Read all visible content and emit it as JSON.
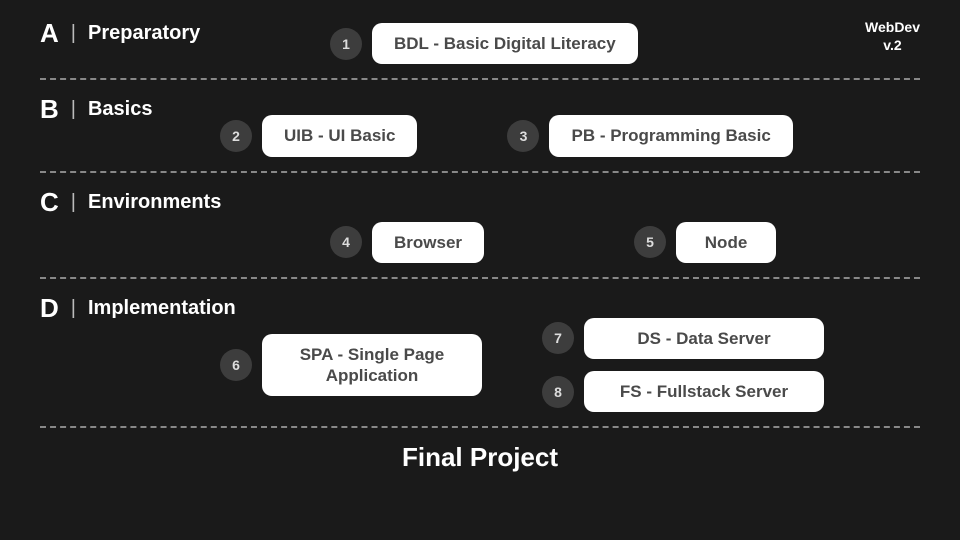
{
  "brand": {
    "name": "WebDev",
    "version": "v.2"
  },
  "colors": {
    "background": "#1a1a1a",
    "card_bg": "#ffffff",
    "card_text": "#4a4a4a",
    "badge_bg": "#3d3d3d",
    "badge_text": "#dddddd",
    "divider": "#888888",
    "text": "#ffffff"
  },
  "typography": {
    "section_letter_fontsize": 26,
    "section_title_fontsize": 20,
    "card_fontsize": 17,
    "badge_fontsize": 14,
    "final_fontsize": 26
  },
  "sections": [
    {
      "letter": "A",
      "title": "Preparatory",
      "modules": [
        {
          "num": "1",
          "label": "BDL - Basic Digital Literacy"
        }
      ]
    },
    {
      "letter": "B",
      "title": "Basics",
      "modules": [
        {
          "num": "2",
          "label": "UIB - UI Basic"
        },
        {
          "num": "3",
          "label": "PB - Programming Basic"
        }
      ]
    },
    {
      "letter": "C",
      "title": "Environments",
      "modules": [
        {
          "num": "4",
          "label": "Browser"
        },
        {
          "num": "5",
          "label": "Node"
        }
      ]
    },
    {
      "letter": "D",
      "title": "Implementation",
      "modules": [
        {
          "num": "6",
          "label": "SPA - Single Page Application"
        },
        {
          "num": "7",
          "label": "DS - Data Server"
        },
        {
          "num": "8",
          "label": "FS - Fullstack Server"
        }
      ]
    }
  ],
  "final_label": "Final Project"
}
